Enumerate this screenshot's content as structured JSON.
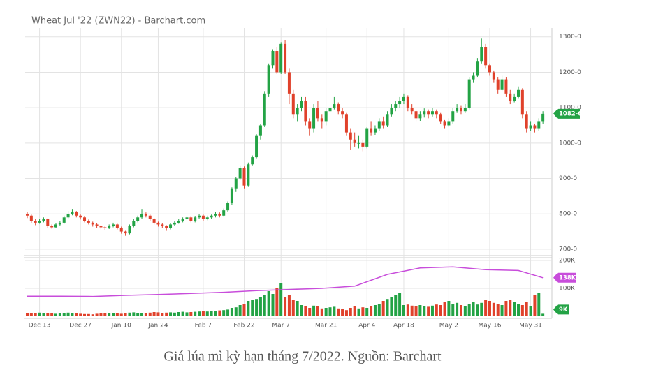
{
  "chart_data": {
    "type": "candlestick",
    "title": "Wheat Jul '22 (ZWN22) - Barchart.com",
    "caption": "Giá lúa mì kỳ hạn tháng 7/2022. Nguồn: Barchart",
    "up_color": "#23a345",
    "down_color": "#e0412b",
    "oi_color": "#c84ddb",
    "grid": true,
    "ylim": [
      688,
      1335
    ],
    "yticks": [
      {
        "value": 700,
        "label": "700-0"
      },
      {
        "value": 800,
        "label": "800-0"
      },
      {
        "value": 900,
        "label": "900-0"
      },
      {
        "value": 1000,
        "label": "1000-0"
      },
      {
        "value": 1100,
        "label": "1100-0"
      },
      {
        "value": 1200,
        "label": "1200-0"
      },
      {
        "value": 1300,
        "label": "1300-0"
      }
    ],
    "xlim": [
      0,
      127
    ],
    "xticks": [
      {
        "value": 3,
        "label": "Dec 13"
      },
      {
        "value": 13,
        "label": "Dec 27"
      },
      {
        "value": 23,
        "label": "Jan 10"
      },
      {
        "value": 32,
        "label": "Jan 24"
      },
      {
        "value": 43,
        "label": "Feb 7"
      },
      {
        "value": 53,
        "label": "Feb 22"
      },
      {
        "value": 62,
        "label": "Mar 7"
      },
      {
        "value": 73,
        "label": "Mar 21"
      },
      {
        "value": 83,
        "label": "Apr 4"
      },
      {
        "value": 92,
        "label": "Apr 18"
      },
      {
        "value": 103,
        "label": "May 2"
      },
      {
        "value": 113,
        "label": "May 16"
      },
      {
        "value": 123,
        "label": "May 31"
      }
    ],
    "ohlc": [
      [
        800,
        805,
        788,
        795
      ],
      [
        795,
        798,
        775,
        780
      ],
      [
        780,
        785,
        768,
        775
      ],
      [
        775,
        786,
        772,
        780
      ],
      [
        780,
        790,
        776,
        785
      ],
      [
        785,
        787,
        760,
        765
      ],
      [
        765,
        770,
        758,
        762
      ],
      [
        762,
        774,
        760,
        770
      ],
      [
        770,
        780,
        766,
        775
      ],
      [
        775,
        795,
        772,
        790
      ],
      [
        790,
        808,
        786,
        800
      ],
      [
        800,
        812,
        796,
        805
      ],
      [
        805,
        808,
        790,
        795
      ],
      [
        795,
        798,
        784,
        790
      ],
      [
        790,
        794,
        776,
        780
      ],
      [
        780,
        784,
        770,
        775
      ],
      [
        775,
        778,
        764,
        770
      ],
      [
        770,
        774,
        760,
        765
      ],
      [
        765,
        768,
        756,
        762
      ],
      [
        762,
        766,
        754,
        760
      ],
      [
        760,
        770,
        757,
        765
      ],
      [
        765,
        775,
        762,
        770
      ],
      [
        770,
        772,
        756,
        760
      ],
      [
        760,
        764,
        744,
        750
      ],
      [
        750,
        752,
        738,
        745
      ],
      [
        745,
        770,
        742,
        765
      ],
      [
        765,
        785,
        762,
        780
      ],
      [
        780,
        795,
        776,
        790
      ],
      [
        790,
        812,
        786,
        800
      ],
      [
        800,
        804,
        790,
        795
      ],
      [
        795,
        798,
        780,
        785
      ],
      [
        785,
        788,
        770,
        775
      ],
      [
        775,
        778,
        764,
        770
      ],
      [
        770,
        774,
        760,
        765
      ],
      [
        765,
        768,
        752,
        760
      ],
      [
        760,
        774,
        756,
        770
      ],
      [
        770,
        780,
        766,
        775
      ],
      [
        775,
        785,
        772,
        780
      ],
      [
        780,
        790,
        776,
        785
      ],
      [
        785,
        795,
        782,
        790
      ],
      [
        790,
        794,
        776,
        780
      ],
      [
        780,
        794,
        776,
        790
      ],
      [
        790,
        800,
        786,
        795
      ],
      [
        795,
        798,
        780,
        785
      ],
      [
        785,
        795,
        782,
        790
      ],
      [
        790,
        798,
        786,
        795
      ],
      [
        795,
        805,
        790,
        800
      ],
      [
        800,
        804,
        790,
        795
      ],
      [
        795,
        815,
        792,
        810
      ],
      [
        810,
        835,
        806,
        830
      ],
      [
        830,
        875,
        826,
        870
      ],
      [
        870,
        905,
        862,
        900
      ],
      [
        900,
        935,
        895,
        930
      ],
      [
        930,
        934,
        870,
        880
      ],
      [
        880,
        945,
        876,
        940
      ],
      [
        940,
        965,
        935,
        960
      ],
      [
        960,
        1025,
        955,
        1020
      ],
      [
        1020,
        1055,
        1010,
        1050
      ],
      [
        1050,
        1145,
        1045,
        1140
      ],
      [
        1140,
        1225,
        1130,
        1220
      ],
      [
        1220,
        1265,
        1210,
        1260
      ],
      [
        1260,
        1270,
        1195,
        1200
      ],
      [
        1200,
        1285,
        1195,
        1280
      ],
      [
        1280,
        1290,
        1195,
        1200
      ],
      [
        1200,
        1210,
        1110,
        1140
      ],
      [
        1140,
        1150,
        1070,
        1080
      ],
      [
        1080,
        1110,
        1060,
        1100
      ],
      [
        1100,
        1130,
        1090,
        1120
      ],
      [
        1120,
        1130,
        1050,
        1060
      ],
      [
        1060,
        1070,
        1020,
        1040
      ],
      [
        1040,
        1110,
        1030,
        1100
      ],
      [
        1100,
        1120,
        1060,
        1070
      ],
      [
        1070,
        1080,
        1040,
        1060
      ],
      [
        1060,
        1100,
        1050,
        1090
      ],
      [
        1090,
        1120,
        1080,
        1100
      ],
      [
        1100,
        1130,
        1095,
        1110
      ],
      [
        1110,
        1115,
        1080,
        1090
      ],
      [
        1090,
        1100,
        1070,
        1080
      ],
      [
        1080,
        1085,
        1020,
        1030
      ],
      [
        1030,
        1040,
        980,
        1010
      ],
      [
        1010,
        1030,
        990,
        1000
      ],
      [
        1000,
        1020,
        985,
        1000
      ],
      [
        1000,
        1010,
        975,
        990
      ],
      [
        990,
        1045,
        985,
        1040
      ],
      [
        1040,
        1060,
        1020,
        1030
      ],
      [
        1030,
        1050,
        1022,
        1040
      ],
      [
        1040,
        1070,
        1035,
        1060
      ],
      [
        1060,
        1075,
        1040,
        1050
      ],
      [
        1050,
        1090,
        1045,
        1080
      ],
      [
        1080,
        1110,
        1075,
        1100
      ],
      [
        1100,
        1120,
        1090,
        1110
      ],
      [
        1110,
        1130,
        1100,
        1120
      ],
      [
        1120,
        1140,
        1110,
        1130
      ],
      [
        1130,
        1135,
        1090,
        1100
      ],
      [
        1100,
        1110,
        1080,
        1090
      ],
      [
        1090,
        1095,
        1060,
        1070
      ],
      [
        1070,
        1090,
        1062,
        1080
      ],
      [
        1080,
        1098,
        1072,
        1090
      ],
      [
        1090,
        1095,
        1070,
        1080
      ],
      [
        1080,
        1100,
        1075,
        1090
      ],
      [
        1090,
        1095,
        1070,
        1080
      ],
      [
        1080,
        1085,
        1055,
        1060
      ],
      [
        1060,
        1065,
        1040,
        1050
      ],
      [
        1050,
        1070,
        1045,
        1060
      ],
      [
        1060,
        1100,
        1055,
        1090
      ],
      [
        1090,
        1110,
        1085,
        1100
      ],
      [
        1100,
        1105,
        1080,
        1090
      ],
      [
        1090,
        1110,
        1085,
        1100
      ],
      [
        1100,
        1185,
        1095,
        1180
      ],
      [
        1180,
        1200,
        1170,
        1190
      ],
      [
        1190,
        1240,
        1185,
        1230
      ],
      [
        1230,
        1295,
        1225,
        1270
      ],
      [
        1270,
        1280,
        1210,
        1220
      ],
      [
        1220,
        1225,
        1190,
        1200
      ],
      [
        1200,
        1205,
        1170,
        1180
      ],
      [
        1180,
        1185,
        1140,
        1150
      ],
      [
        1150,
        1190,
        1145,
        1180
      ],
      [
        1180,
        1185,
        1130,
        1140
      ],
      [
        1140,
        1150,
        1110,
        1120
      ],
      [
        1120,
        1140,
        1115,
        1130
      ],
      [
        1130,
        1160,
        1125,
        1150
      ],
      [
        1150,
        1155,
        1070,
        1080
      ],
      [
        1080,
        1090,
        1030,
        1040
      ],
      [
        1040,
        1060,
        1035,
        1050
      ],
      [
        1050,
        1055,
        1030,
        1040
      ],
      [
        1040,
        1070,
        1035,
        1060
      ],
      [
        1060,
        1090,
        1055,
        1082.75
      ]
    ],
    "last": {
      "value": 1082.75,
      "label": "1082-6"
    },
    "volume_ylim": [
      0,
      220
    ],
    "volume_yticks": [
      {
        "value": 100,
        "label": "100K"
      },
      {
        "value": 200,
        "label": "200K"
      }
    ],
    "volume": [
      12,
      11,
      10,
      13,
      12,
      11,
      10,
      9,
      10,
      12,
      13,
      11,
      10,
      9,
      8,
      8,
      7,
      9,
      10,
      10,
      11,
      12,
      10,
      9,
      11,
      13,
      14,
      12,
      11,
      12,
      13,
      15,
      14,
      12,
      13,
      14,
      13,
      15,
      16,
      14,
      15,
      16,
      17,
      18,
      17,
      19,
      20,
      21,
      22,
      24,
      30,
      32,
      40,
      45,
      55,
      60,
      62,
      70,
      75,
      90,
      80,
      100,
      120,
      70,
      75,
      60,
      55,
      40,
      35,
      30,
      38,
      35,
      28,
      30,
      32,
      34,
      28,
      25,
      22,
      30,
      35,
      28,
      32,
      30,
      35,
      40,
      45,
      55,
      62,
      70,
      75,
      85,
      40,
      42,
      38,
      35,
      40,
      36,
      34,
      38,
      42,
      40,
      50,
      55,
      45,
      48,
      40,
      35,
      45,
      50,
      42,
      48,
      60,
      55,
      48,
      45,
      40,
      55,
      60,
      50,
      45,
      40,
      50,
      35,
      75,
      85,
      9
    ],
    "volume_last": {
      "value": 9,
      "label": "9K"
    },
    "open_interest": {
      "x": [
        0,
        8,
        16,
        24,
        32,
        40,
        48,
        56,
        64,
        72,
        80,
        88,
        96,
        104,
        112,
        120,
        126
      ],
      "values": [
        72,
        72,
        71,
        75,
        78,
        82,
        86,
        92,
        96,
        100,
        108,
        150,
        173,
        177,
        167,
        164,
        138
      ]
    },
    "oi_last": {
      "value": 138,
      "label": "138K"
    }
  }
}
